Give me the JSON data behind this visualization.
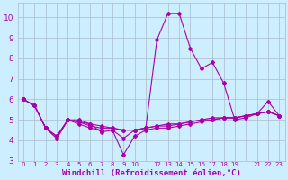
{
  "xlabel": "Windchill (Refroidissement éolien,°C)",
  "background_color": "#cceeff",
  "grid_color": "#aabbcc",
  "line_color": "#aa00aa",
  "series": [
    [
      6.0,
      5.7,
      4.6,
      4.1,
      5.0,
      5.0,
      4.8,
      4.4,
      4.5,
      4.1,
      4.5,
      4.6,
      8.9,
      10.2,
      10.2,
      8.5,
      7.5,
      7.8,
      6.8,
      5.0,
      5.1,
      5.3,
      5.9,
      5.2
    ],
    [
      6.0,
      5.7,
      4.6,
      4.1,
      5.0,
      4.8,
      4.6,
      4.5,
      4.5,
      3.3,
      4.2,
      4.5,
      4.6,
      4.6,
      4.7,
      4.8,
      4.9,
      5.0,
      5.1,
      5.1,
      5.2,
      5.3,
      5.4,
      5.2
    ],
    [
      6.0,
      5.7,
      4.6,
      4.2,
      5.0,
      4.9,
      4.7,
      4.6,
      4.6,
      4.5,
      4.5,
      4.6,
      4.7,
      4.7,
      4.8,
      4.9,
      5.0,
      5.0,
      5.1,
      5.1,
      5.2,
      5.3,
      5.4,
      5.2
    ],
    [
      6.0,
      5.7,
      4.6,
      4.2,
      5.0,
      4.9,
      4.8,
      4.7,
      4.6,
      4.5,
      4.5,
      4.6,
      4.7,
      4.8,
      4.8,
      4.9,
      5.0,
      5.1,
      5.1,
      5.1,
      5.2,
      5.3,
      5.4,
      5.2
    ]
  ],
  "x_values": [
    0,
    1,
    2,
    3,
    4,
    5,
    6,
    7,
    8,
    9,
    10,
    11,
    12,
    13,
    14,
    15,
    16,
    17,
    18,
    19,
    20,
    21,
    22,
    23
  ],
  "xlim": [
    -0.5,
    23.5
  ],
  "ylim": [
    3,
    10.7
  ],
  "yticks": [
    3,
    4,
    5,
    6,
    7,
    8,
    9,
    10
  ],
  "xtick_labels": [
    "0",
    "1",
    "2",
    "3",
    "4",
    "5",
    "6",
    "7",
    "8",
    "9",
    "10",
    "",
    "1213141516171819",
    "",
    "",
    "212223",
    "",
    "",
    "",
    "",
    "",
    "",
    "",
    ""
  ],
  "marker": "D",
  "markersize": 2,
  "linewidth": 0.8
}
